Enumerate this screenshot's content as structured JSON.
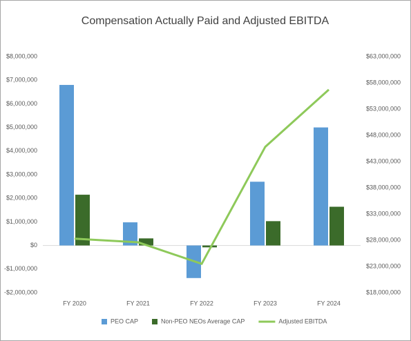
{
  "chart_data": {
    "type": "bar-line",
    "title": "Compensation Actually Paid and Adjusted EBITDA",
    "categories": [
      "FY 2020",
      "FY 2021",
      "FY 2022",
      "FY 2023",
      "FY 2024"
    ],
    "series": [
      {
        "name": "PEO CAP",
        "color": "#5b9bd5",
        "type": "bar",
        "values": [
          6800000,
          980000,
          -1380000,
          2700000,
          5000000
        ]
      },
      {
        "name": "Non-PEO NEOs Average CAP",
        "color": "#3b6b2a",
        "type": "bar",
        "values": [
          2150000,
          300000,
          -80000,
          1030000,
          1640000
        ]
      },
      {
        "name": "Adjusted EBITDA",
        "color": "#8ec95a",
        "type": "line",
        "axis": "y2",
        "values": [
          28300000,
          27600000,
          23500000,
          45800000,
          56700000
        ]
      }
    ],
    "ylim": [
      -2000000,
      8000000
    ],
    "yticks": [
      {
        "value": -2000000,
        "label": "-$2,000,000"
      },
      {
        "value": -1000000,
        "label": "-$1,000,000"
      },
      {
        "value": 0,
        "label": "$0"
      },
      {
        "value": 1000000,
        "label": "$1,000,000"
      },
      {
        "value": 2000000,
        "label": "$2,000,000"
      },
      {
        "value": 3000000,
        "label": "$3,000,000"
      },
      {
        "value": 4000000,
        "label": "$4,000,000"
      },
      {
        "value": 5000000,
        "label": "$5,000,000"
      },
      {
        "value": 6000000,
        "label": "$6,000,000"
      },
      {
        "value": 7000000,
        "label": "$7,000,000"
      },
      {
        "value": 8000000,
        "label": "$8,000,000"
      }
    ],
    "y2lim": [
      18000000,
      63000000
    ],
    "y2ticks": [
      {
        "value": 18000000,
        "label": "$18,000,000"
      },
      {
        "value": 23000000,
        "label": "$23,000,000"
      },
      {
        "value": 28000000,
        "label": "$28,000,000"
      },
      {
        "value": 33000000,
        "label": "$33,000,000"
      },
      {
        "value": 38000000,
        "label": "$38,000,000"
      },
      {
        "value": 43000000,
        "label": "$43,000,000"
      },
      {
        "value": 48000000,
        "label": "$48,000,000"
      },
      {
        "value": 53000000,
        "label": "$53,000,000"
      },
      {
        "value": 58000000,
        "label": "$58,000,000"
      },
      {
        "value": 63000000,
        "label": "$63,000,000"
      }
    ],
    "grid": false,
    "legend": "bottom"
  }
}
